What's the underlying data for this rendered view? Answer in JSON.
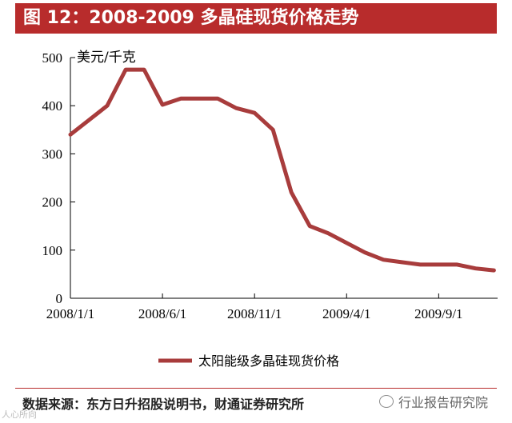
{
  "header": {
    "title": "图 12：2008-2009 多晶硅现货价格走势"
  },
  "chart_data": {
    "type": "line",
    "ylabel": "美元/千克",
    "ylim": [
      0,
      500
    ],
    "y_ticks": [
      "0",
      "100",
      "200",
      "300",
      "400",
      "500"
    ],
    "x_ticks": [
      "2008/1/1",
      "2008/6/1",
      "2008/11/1",
      "2009/4/1",
      "2009/9/1"
    ],
    "x_tick_values": [
      0,
      5,
      10,
      15,
      20
    ],
    "xlim": [
      0,
      23.2
    ],
    "grid": false,
    "legend_position": "bottom",
    "line_color": "#a83c3c",
    "series": [
      {
        "name": "太阳能级多晶硅现货价格",
        "x": [
          0,
          1,
          2,
          3,
          4,
          5,
          6,
          7,
          8,
          9,
          10,
          11,
          12,
          13,
          14,
          15,
          16,
          17,
          18,
          19,
          20,
          21,
          22,
          23
        ],
        "values": [
          340,
          370,
          400,
          475,
          475,
          402,
          415,
          415,
          415,
          395,
          385,
          350,
          220,
          150,
          135,
          115,
          95,
          80,
          75,
          70,
          70,
          70,
          62,
          58
        ]
      }
    ]
  },
  "footer": {
    "source": "数据来源：东方日升招股说明书，财通证券研究所",
    "watermark": "行业报告研究院",
    "corner_text": "人心所向"
  }
}
